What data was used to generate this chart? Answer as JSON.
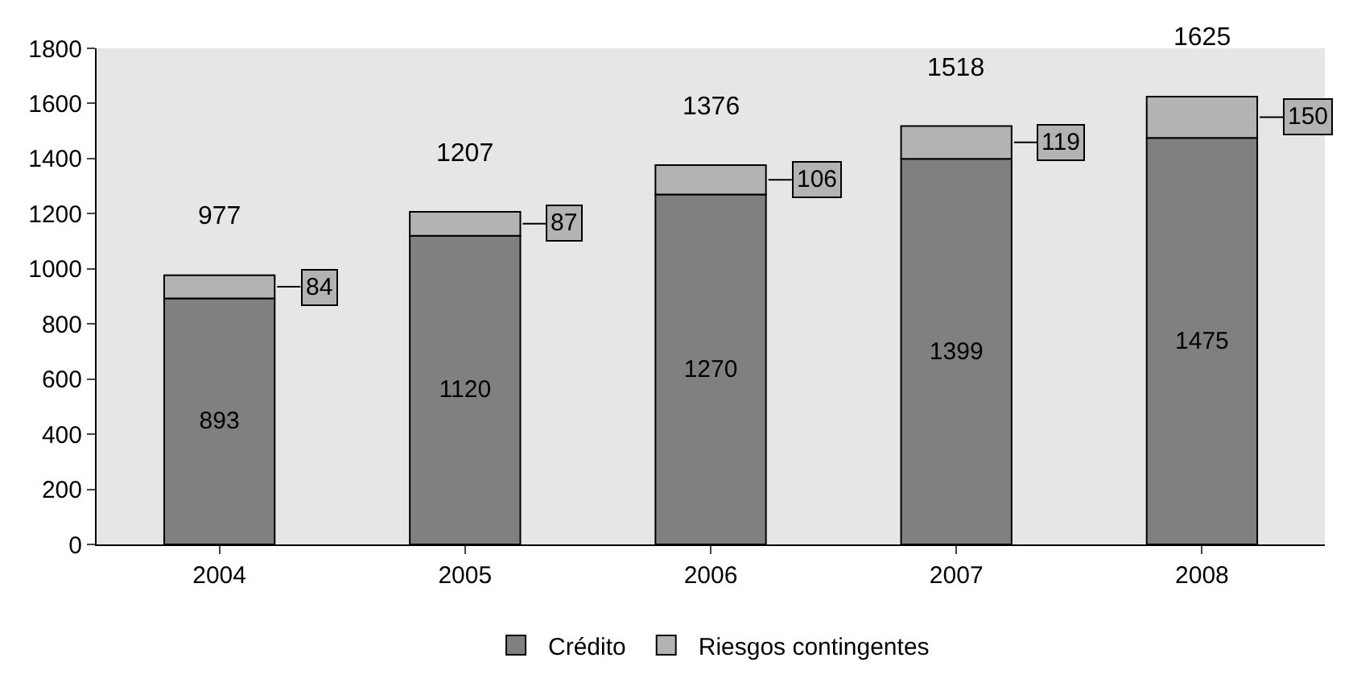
{
  "chart_data": {
    "type": "bar",
    "stacked": true,
    "categories": [
      "2004",
      "2005",
      "2006",
      "2007",
      "2008"
    ],
    "series": [
      {
        "name": "Crédito",
        "color": "#808080",
        "values": [
          893,
          1120,
          1270,
          1399,
          1475
        ]
      },
      {
        "name": "Riesgos contingentes",
        "color": "#b3b3b3",
        "values": [
          84,
          87,
          106,
          119,
          150
        ]
      }
    ],
    "totals": [
      "977",
      "1207",
      "1376",
      "1518",
      "1625"
    ],
    "data_labels": true,
    "ylim": [
      0,
      1800
    ],
    "yticks": [
      0,
      200,
      400,
      600,
      800,
      1000,
      1200,
      1400,
      1600,
      1800
    ],
    "grid": false,
    "legend": "bottom"
  }
}
